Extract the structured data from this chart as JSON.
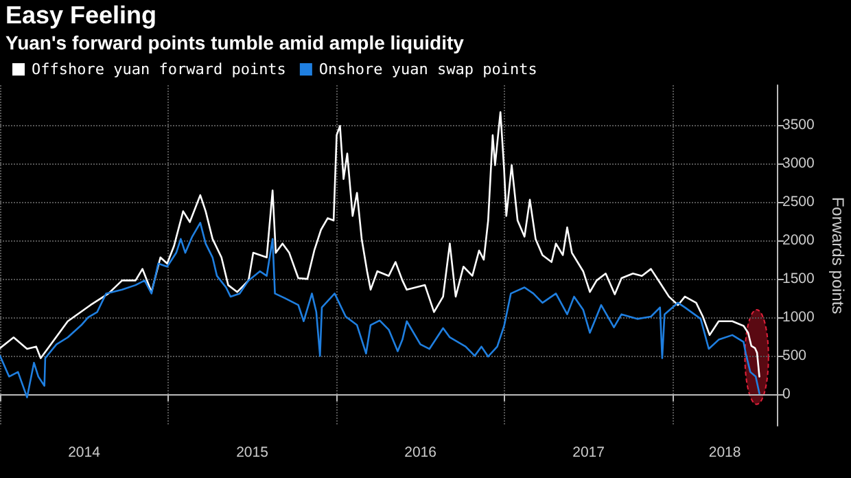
{
  "chart_data": {
    "type": "line",
    "title": "Easy Feeling",
    "subtitle": "Yuan's forward points tumble amid ample liquidity",
    "ylabel": "Forwards points",
    "xlim": [
      2014,
      2018.62
    ],
    "ylim": [
      -410,
      4020
    ],
    "xticks": [
      {
        "value": 2014,
        "label": null
      },
      {
        "value": 2014.5,
        "label": "2014"
      },
      {
        "value": 2015,
        "label": null
      },
      {
        "value": 2015.5,
        "label": "2015"
      },
      {
        "value": 2016,
        "label": null
      },
      {
        "value": 2016.5,
        "label": "2016"
      },
      {
        "value": 2017,
        "label": null
      },
      {
        "value": 2017.5,
        "label": "2017"
      },
      {
        "value": 2018,
        "label": null
      },
      {
        "value": 2018.31,
        "label": "2018"
      }
    ],
    "yticks": [
      0,
      500,
      1000,
      1500,
      2000,
      2500,
      3000,
      3500
    ],
    "grid": true,
    "legend": "top left",
    "marker": "none",
    "line_style": "solid",
    "series": [
      {
        "name": "Offshore yuan forward points",
        "color": "#ffffff",
        "x": [
          2014.0,
          2014.081,
          2014.161,
          2014.215,
          2014.242,
          2014.323,
          2014.403,
          2014.538,
          2014.645,
          2014.726,
          2014.806,
          2014.847,
          2014.901,
          2014.954,
          2014.994,
          2015.035,
          2015.089,
          2015.129,
          2015.191,
          2015.223,
          2015.264,
          2015.317,
          2015.357,
          2015.411,
          2015.478,
          2015.506,
          2015.586,
          2015.621,
          2015.64,
          2015.68,
          2015.72,
          2015.774,
          2015.828,
          2015.869,
          2015.909,
          2015.949,
          2015.984,
          2016.002,
          2016.022,
          2016.043,
          2016.065,
          2016.097,
          2016.123,
          2016.151,
          2016.183,
          2016.204,
          2016.244,
          2016.312,
          2016.352,
          2016.393,
          2016.419,
          2016.527,
          2016.581,
          2016.635,
          2016.675,
          2016.71,
          2016.756,
          2016.809,
          2016.849,
          2016.877,
          2016.903,
          2016.93,
          2016.944,
          2016.976,
          2016.998,
          2017.011,
          2017.043,
          2017.078,
          2017.119,
          2017.151,
          2017.185,
          2017.226,
          2017.28,
          2017.306,
          2017.347,
          2017.373,
          2017.401,
          2017.468,
          2017.508,
          2017.548,
          2017.602,
          2017.656,
          2017.696,
          2017.764,
          2017.817,
          2017.871,
          2017.925,
          2017.978,
          2018.032,
          2018.073,
          2018.14,
          2018.18,
          2018.22,
          2018.274,
          2018.355,
          2018.422,
          2018.449,
          2018.468,
          2018.49,
          2018.502,
          2018.516
        ],
        "values": [
          600,
          740,
          590,
          620,
          470,
          710,
          950,
          1160,
          1310,
          1480,
          1480,
          1630,
          1330,
          1780,
          1700,
          1930,
          2380,
          2240,
          2590,
          2380,
          2020,
          1780,
          1420,
          1330,
          1480,
          1840,
          1780,
          2650,
          1840,
          1960,
          1840,
          1510,
          1500,
          1870,
          2140,
          2290,
          2260,
          3370,
          3490,
          2800,
          3130,
          2320,
          2620,
          2020,
          1600,
          1360,
          1600,
          1540,
          1720,
          1480,
          1360,
          1420,
          1070,
          1270,
          1960,
          1270,
          1660,
          1540,
          1870,
          1750,
          2260,
          3370,
          2980,
          3670,
          2920,
          2320,
          2980,
          2260,
          2050,
          2530,
          2020,
          1810,
          1720,
          1960,
          1810,
          2170,
          1840,
          1600,
          1330,
          1480,
          1570,
          1300,
          1510,
          1570,
          1540,
          1630,
          1450,
          1270,
          1160,
          1270,
          1190,
          1010,
          770,
          950,
          950,
          890,
          800,
          630,
          600,
          540,
          230
        ]
      },
      {
        "name": "Onshore yuan swap points",
        "color": "#1f7fe0",
        "x": [
          2014.0,
          2014.054,
          2014.107,
          2014.161,
          2014.202,
          2014.228,
          2014.264,
          2014.269,
          2014.336,
          2014.403,
          2014.484,
          2014.524,
          2014.578,
          2014.631,
          2014.726,
          2014.806,
          2014.86,
          2014.901,
          2014.941,
          2014.994,
          2015.048,
          2015.075,
          2015.102,
          2015.143,
          2015.191,
          2015.223,
          2015.264,
          2015.29,
          2015.344,
          2015.371,
          2015.425,
          2015.478,
          2015.546,
          2015.586,
          2015.621,
          2015.635,
          2015.694,
          2015.774,
          2015.806,
          2015.855,
          2015.881,
          2015.903,
          2015.914,
          2015.99,
          2016.056,
          2016.123,
          2016.177,
          2016.204,
          2016.258,
          2016.312,
          2016.365,
          2016.393,
          2016.419,
          2016.5,
          2016.554,
          2016.635,
          2016.675,
          2016.769,
          2016.823,
          2016.863,
          2016.903,
          2016.957,
          2016.998,
          2017.038,
          2017.119,
          2017.172,
          2017.226,
          2017.306,
          2017.373,
          2017.414,
          2017.468,
          2017.508,
          2017.575,
          2017.651,
          2017.696,
          2017.79,
          2017.871,
          2017.925,
          2017.938,
          2017.952,
          2018.032,
          2018.073,
          2018.167,
          2018.215,
          2018.274,
          2018.355,
          2018.422,
          2018.435,
          2018.462,
          2018.494,
          2018.516
        ],
        "values": [
          500,
          230,
          290,
          -40,
          410,
          230,
          110,
          470,
          650,
          740,
          900,
          1000,
          1070,
          1310,
          1360,
          1420,
          1480,
          1310,
          1700,
          1660,
          1840,
          2020,
          1840,
          2050,
          2230,
          1960,
          1780,
          1540,
          1390,
          1270,
          1310,
          1480,
          1600,
          1540,
          2020,
          1310,
          1250,
          1160,
          950,
          1310,
          1070,
          500,
          1130,
          1310,
          1010,
          900,
          530,
          900,
          960,
          840,
          560,
          710,
          950,
          650,
          590,
          860,
          740,
          620,
          500,
          620,
          490,
          620,
          890,
          1310,
          1390,
          1310,
          1190,
          1310,
          1040,
          1270,
          1100,
          800,
          1160,
          870,
          1040,
          980,
          1010,
          1130,
          470,
          1040,
          1190,
          1130,
          980,
          590,
          710,
          770,
          680,
          530,
          290,
          230,
          10
        ]
      }
    ]
  }
}
